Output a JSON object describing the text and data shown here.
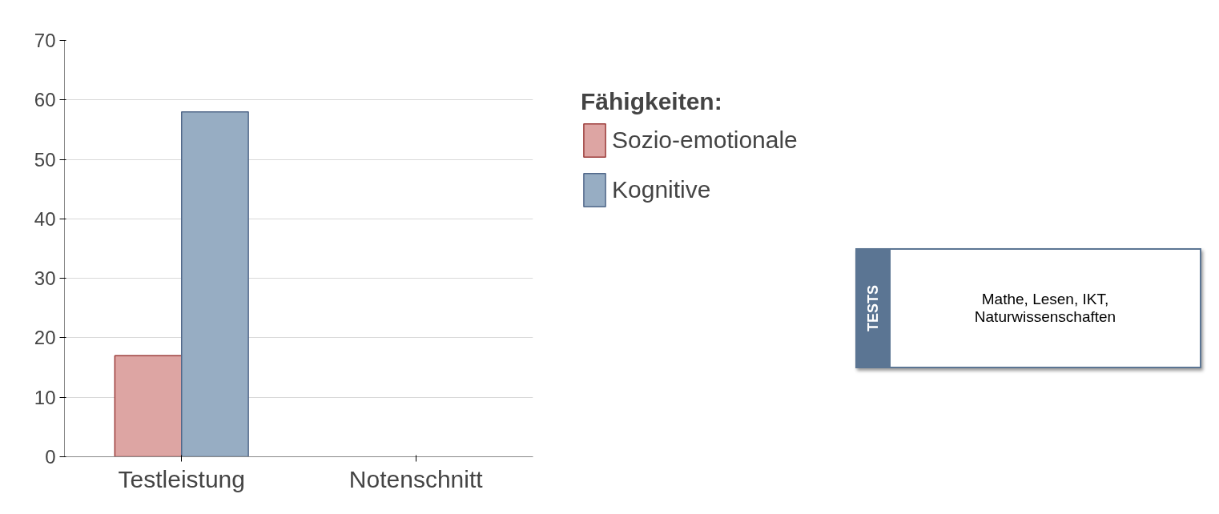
{
  "chart_data": {
    "type": "bar",
    "categories": [
      "Testleistung",
      "Notenschnitt"
    ],
    "series": [
      {
        "name": "Sozio-emotionale",
        "color": "#dda5a3",
        "values": [
          17,
          null
        ]
      },
      {
        "name": "Kognitive",
        "color": "#97adc3",
        "values": [
          58,
          null
        ]
      }
    ],
    "ylim": [
      0,
      70
    ],
    "yticks": [
      0,
      10,
      20,
      30,
      40,
      50,
      60,
      70
    ],
    "grid": "y",
    "legend": "right",
    "legend_title": "Fähigkeiten:",
    "annotations": [
      "TESTS",
      "Mathe, Lesen, IKT,\nNaturwissenschaften"
    ]
  }
}
